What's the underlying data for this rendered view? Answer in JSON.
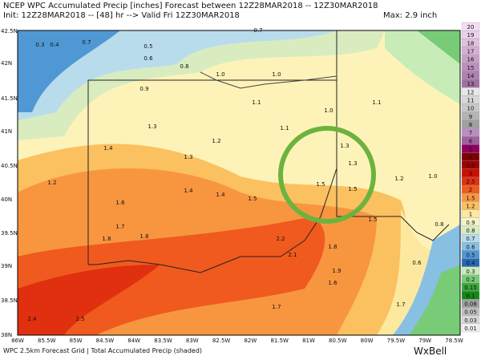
{
  "header": {
    "line1": "NCEP WPC Accumulated Precip [inches] Forecast between 12Z28MAR2018 -- 12Z30MAR2018",
    "line2": "Init: 12Z28MAR2018 -- [48] hr --> Valid Fri 12Z30MAR2018",
    "max": "Max: 2.9 inch"
  },
  "footer": {
    "source": "WPC 2.5km Forecast Grid | Total Accumulated Precip (shaded)",
    "brand": "WxBell"
  },
  "lat_labels": [
    "42.5N",
    "42N",
    "41.5N",
    "41N",
    "40.5N",
    "40N",
    "39.5N",
    "39N",
    "38.5N",
    "38N"
  ],
  "lon_labels": [
    "86W",
    "85.5W",
    "85W",
    "84.5W",
    "84W",
    "83.5W",
    "83W",
    "82.5W",
    "82W",
    "81.5W",
    "81W",
    "80.5W",
    "80W",
    "79.5W",
    "79W",
    "78.5W"
  ],
  "colorbar": {
    "labels": [
      "20",
      "19",
      "18",
      "17",
      "16",
      "15",
      "14",
      "13",
      "12",
      "11",
      "10",
      "9",
      "8",
      "7",
      "6",
      "5",
      "4",
      "3.5",
      "3",
      "2.5",
      "2",
      "1.5",
      "1.2",
      "1",
      "0.9",
      "0.8",
      "0.7",
      "0.6",
      "0.5",
      "0.4",
      "0.3",
      "0.2",
      "0.15",
      "0.1",
      "0.08",
      "0.05",
      "0.03",
      "0.01"
    ],
    "colors": [
      "#f4dcf4",
      "#ead0ea",
      "#e0c0e0",
      "#d4b0d4",
      "#c8a0c8",
      "#bc90bc",
      "#b080b0",
      "#a070a0",
      "#e8e8e8",
      "#d8d8d8",
      "#c8c8c8",
      "#b4b4b4",
      "#a0a0a0",
      "#b890c0",
      "#a060a0",
      "#900060",
      "#800000",
      "#a00000",
      "#c81000",
      "#e03010",
      "#f05a1e",
      "#f89640",
      "#fbc060",
      "#fde8a0",
      "#f6f4c8",
      "#d8ecc0",
      "#b8dcec",
      "#88c0e4",
      "#5098d4",
      "#2868b8",
      "#c8ecb8",
      "#78cc78",
      "#38a838",
      "#148814",
      "#a0a0a0",
      "#c0c0c0",
      "#d8d8d8",
      "#f0f0f0"
    ]
  },
  "map_labels": [
    "0.3",
    "0.4",
    "0.7",
    "0.5",
    "0.6",
    "0.7",
    "0.8",
    "1.0",
    "0.9",
    "1.0",
    "1.1",
    "1.1",
    "1.0",
    "1.2",
    "1.3",
    "1.1",
    "1.3",
    "1.4",
    "1.2",
    "1.3",
    "1.5",
    "1.4",
    "1.4",
    "1.6",
    "1.7",
    "1.8",
    "1.8",
    "2.2",
    "1.8",
    "2.1",
    "1.9",
    "1.6",
    "1.7",
    "2.4",
    "2.5",
    "1.5",
    "1.5",
    "1.5",
    "1.3",
    "1.2",
    "1.0",
    "0.8",
    "0.6",
    "1.7"
  ]
}
